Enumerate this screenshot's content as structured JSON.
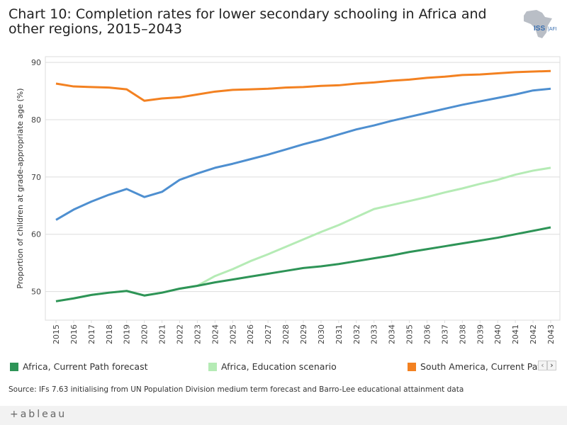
{
  "title": "Chart 10: Completion rates for lower secondary schooling in Africa and other regions, 2015–2043",
  "logo_text": "ISS|AFI",
  "source": "Source: IFs 7.63 initialising from UN Population Division medium term forecast and Barro-Lee educational attainment data",
  "footer": {
    "brand": "+ableau",
    "icon": "tableau-plus-icon"
  },
  "legend": [
    {
      "label": "Africa, Current Path forecast",
      "color": "#2e9457"
    },
    {
      "label": "Africa, Education scenario",
      "color": "#b5ebb5"
    },
    {
      "label": "South America, Current Path",
      "color": "#f38121"
    }
  ],
  "chart_data": {
    "type": "line",
    "ylabel": "Proportion of children at grade-appropriate age (%)",
    "ylim": [
      45,
      91
    ],
    "yticks": [
      50,
      60,
      70,
      80,
      90
    ],
    "grid": true,
    "legend_position": "bottom",
    "x": [
      2015,
      2016,
      2017,
      2018,
      2019,
      2020,
      2021,
      2022,
      2023,
      2024,
      2025,
      2026,
      2027,
      2028,
      2029,
      2030,
      2031,
      2032,
      2033,
      2034,
      2035,
      2036,
      2037,
      2038,
      2039,
      2040,
      2041,
      2042,
      2043
    ],
    "series": [
      {
        "name": "South America, Current Path",
        "color": "#f38121",
        "values": [
          86.3,
          85.8,
          85.7,
          85.6,
          85.3,
          83.3,
          83.7,
          83.9,
          84.4,
          84.9,
          85.2,
          85.3,
          85.4,
          85.6,
          85.7,
          85.9,
          86.0,
          86.3,
          86.5,
          86.8,
          87.0,
          87.3,
          87.5,
          87.8,
          87.9,
          88.1,
          88.3,
          88.4,
          88.5
        ]
      },
      {
        "color": "#4e8fd0",
        "values": [
          62.5,
          64.3,
          65.7,
          66.9,
          67.9,
          66.5,
          67.4,
          69.5,
          70.6,
          71.6,
          72.3,
          73.1,
          73.9,
          74.8,
          75.7,
          76.5,
          77.4,
          78.3,
          79.0,
          79.8,
          80.5,
          81.2,
          81.9,
          82.6,
          83.2,
          83.8,
          84.4,
          85.1,
          85.4
        ]
      },
      {
        "name": "Africa, Education scenario",
        "color": "#b5ebb5",
        "values": [
          48.3,
          48.8,
          49.4,
          49.8,
          50.1,
          49.3,
          49.8,
          50.5,
          51.0,
          52.7,
          53.9,
          55.3,
          56.5,
          57.8,
          59.1,
          60.4,
          61.6,
          63.0,
          64.4,
          65.1,
          65.8,
          66.5,
          67.3,
          68.0,
          68.8,
          69.5,
          70.4,
          71.1,
          71.6
        ]
      },
      {
        "name": "Africa, Current Path forecast",
        "color": "#2e9457",
        "values": [
          48.3,
          48.8,
          49.4,
          49.8,
          50.1,
          49.3,
          49.8,
          50.5,
          51.0,
          51.6,
          52.1,
          52.6,
          53.1,
          53.6,
          54.1,
          54.4,
          54.8,
          55.3,
          55.8,
          56.3,
          56.9,
          57.4,
          57.9,
          58.4,
          58.9,
          59.4,
          60.0,
          60.6,
          61.2
        ]
      }
    ]
  }
}
